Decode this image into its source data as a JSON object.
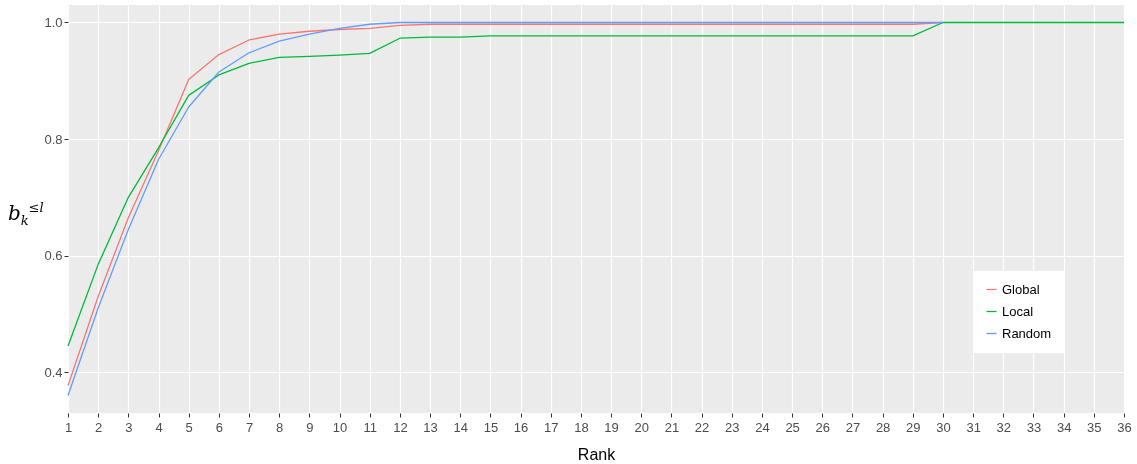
{
  "chart_data": {
    "type": "line",
    "xlabel": "Rank",
    "ylabel": "b$_{k}$$^{≤l}$",
    "x": [
      1,
      2,
      3,
      4,
      5,
      6,
      7,
      8,
      9,
      10,
      11,
      12,
      13,
      14,
      15,
      16,
      17,
      18,
      19,
      20,
      21,
      22,
      23,
      24,
      25,
      26,
      27,
      28,
      29,
      30,
      31,
      32,
      33,
      34,
      35,
      36
    ],
    "xlim": [
      1,
      36
    ],
    "xticks": [
      1,
      2,
      3,
      4,
      5,
      6,
      7,
      8,
      9,
      10,
      11,
      12,
      13,
      14,
      15,
      16,
      17,
      18,
      19,
      20,
      21,
      22,
      23,
      24,
      25,
      26,
      27,
      28,
      29,
      30,
      31,
      32,
      33,
      34,
      35,
      36
    ],
    "ylim": [
      0.33,
      1.03
    ],
    "yticks": [
      0.4,
      0.6,
      0.8,
      {
        "value": 1,
        "label": "1.0"
      }
    ],
    "series": [
      {
        "name": "Global",
        "color": "#f8766d",
        "values": [
          0.377,
          0.53,
          0.665,
          0.78,
          0.902,
          0.945,
          0.97,
          0.98,
          0.985,
          0.988,
          0.99,
          0.995,
          0.997,
          0.997,
          0.997,
          0.997,
          0.997,
          0.997,
          0.997,
          0.997,
          0.997,
          0.997,
          0.997,
          0.997,
          0.997,
          0.997,
          0.997,
          0.997,
          0.997,
          1.0,
          null,
          null,
          null,
          null,
          null,
          null
        ]
      },
      {
        "name": "Local",
        "color": "#00ba38",
        "values": [
          0.445,
          0.585,
          0.7,
          0.785,
          0.875,
          0.91,
          0.93,
          0.94,
          0.942,
          0.944,
          0.947,
          0.973,
          0.975,
          0.975,
          0.977,
          0.977,
          0.977,
          0.977,
          0.977,
          0.977,
          0.977,
          0.977,
          0.977,
          0.977,
          0.977,
          0.977,
          0.977,
          0.977,
          0.977,
          1.0,
          1.0,
          1.0,
          1.0,
          1.0,
          1.0,
          1.0
        ]
      },
      {
        "name": "Random",
        "color": "#619cff",
        "values": [
          0.36,
          0.51,
          0.645,
          0.765,
          0.855,
          0.915,
          0.948,
          0.968,
          0.98,
          0.99,
          0.997,
          1.0,
          1.0,
          1.0,
          1.0,
          1.0,
          1.0,
          1.0,
          1.0,
          1.0,
          1.0,
          1.0,
          1.0,
          1.0,
          1.0,
          1.0,
          1.0,
          1.0,
          1.0,
          1.0,
          null,
          null,
          null,
          null,
          null,
          null
        ]
      }
    ],
    "grid": true,
    "legend": "bottom right",
    "marker": "none",
    "line_style": "solid"
  }
}
